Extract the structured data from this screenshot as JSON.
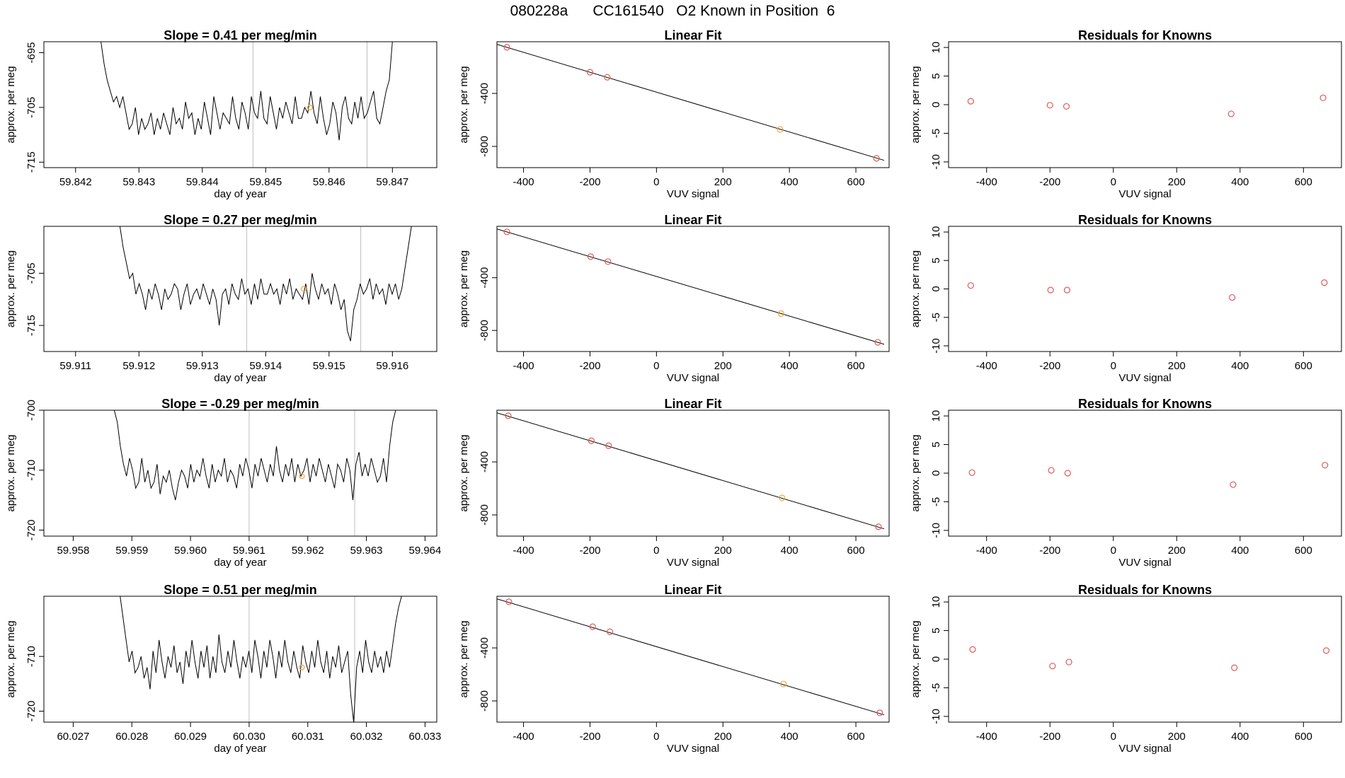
{
  "suptitle": "080228a      CC161540   O2 Known in Position  6",
  "colors": {
    "line": "#000000",
    "gray_line": "#bebebe",
    "red_pt": "#df5a5a",
    "orange_pt": "#f1a63a",
    "axis": "#000000"
  },
  "chart_data": [
    {
      "row": 0,
      "type": "line",
      "title": "Slope =  0.41  per meg/min",
      "xlabel": "day of year",
      "ylabel": "approx. per meg",
      "xlim": [
        59.8415,
        59.8477
      ],
      "ylim": [
        -716,
        -693
      ],
      "xticks": [
        "59.842",
        "59.843",
        "59.844",
        "59.845",
        "59.846",
        "59.847"
      ],
      "yticks": [
        "-695",
        "-705",
        "-715"
      ],
      "vlines": [
        59.8448,
        59.8466
      ],
      "highlight_point": {
        "x": 59.8457,
        "y": -705
      },
      "series_x_start": 59.8424,
      "series_x_end": 59.847,
      "series_y": [
        -693,
        -697,
        -700,
        -702,
        -704,
        -703,
        -705,
        -703,
        -706,
        -709,
        -708,
        -705,
        -710,
        -707,
        -709,
        -708,
        -706,
        -710,
        -707,
        -709,
        -706,
        -708,
        -710,
        -705,
        -708,
        -707,
        -709,
        -704,
        -707,
        -706,
        -710,
        -707,
        -709,
        -704,
        -707,
        -710,
        -703,
        -706,
        -709,
        -706,
        -707,
        -708,
        -703,
        -707,
        -709,
        -704,
        -706,
        -709,
        -703,
        -706,
        -707,
        -702,
        -707,
        -708,
        -703,
        -706,
        -709,
        -705,
        -707,
        -704,
        -706,
        -708,
        -703,
        -707,
        -707,
        -705,
        -706,
        -702,
        -706,
        -708,
        -703,
        -707,
        -710,
        -708,
        -704,
        -706,
        -711,
        -705,
        -703,
        -707,
        -708,
        -704,
        -707,
        -703,
        -707,
        -706,
        -704,
        -702,
        -707,
        -708,
        -705,
        -702,
        -700,
        -693
      ]
    },
    {
      "row": 0,
      "type": "scatter",
      "title": "Linear Fit",
      "xlabel": "VUV signal",
      "ylabel": "approx. per meg",
      "xlim": [
        -480,
        700
      ],
      "ylim": [
        -960,
        -10
      ],
      "xticks": [
        -400,
        -200,
        0,
        200,
        400,
        600
      ],
      "yticks": [
        -400,
        -800
      ],
      "points": [
        {
          "x": -450,
          "y": -52
        },
        {
          "x": -200,
          "y": -240
        },
        {
          "x": -148,
          "y": -278
        },
        {
          "x": 372,
          "y": -672
        },
        {
          "x": 662,
          "y": -890
        }
      ],
      "point_colors": [
        "red",
        "red",
        "red",
        "orange",
        "red"
      ],
      "fit_line": {
        "x": [
          -480,
          685
        ],
        "y": [
          -30,
          -905
        ]
      }
    },
    {
      "row": 0,
      "type": "scatter",
      "title": "Residuals for Knowns",
      "xlabel": "VUV signal",
      "ylabel": "approx. per meg",
      "xlim": [
        -520,
        720
      ],
      "ylim": [
        -11,
        11
      ],
      "xticks": [
        -400,
        -200,
        0,
        200,
        400,
        600
      ],
      "yticks": [
        10,
        5,
        0,
        -5,
        -10
      ],
      "points": [
        {
          "x": -450,
          "y": 0.6
        },
        {
          "x": -200,
          "y": -0.1
        },
        {
          "x": -148,
          "y": -0.3
        },
        {
          "x": 372,
          "y": -1.6
        },
        {
          "x": 662,
          "y": 1.2
        }
      ]
    },
    {
      "row": 1,
      "type": "line",
      "title": "Slope =  0.27  per meg/min",
      "xlabel": "day of year",
      "ylabel": "approx. per meg",
      "xlim": [
        59.9105,
        59.9167
      ],
      "ylim": [
        -720,
        -696
      ],
      "xticks": [
        "59.911",
        "59.912",
        "59.913",
        "59.914",
        "59.915",
        "59.916"
      ],
      "yticks": [
        "-705",
        "-715"
      ],
      "vlines": [
        59.9137,
        59.9155
      ],
      "highlight_point": {
        "x": 59.9146,
        "y": -708
      },
      "series_x_start": 59.9117,
      "series_x_end": 59.9163,
      "series_y": [
        -696,
        -700,
        -703,
        -706,
        -705,
        -709,
        -707,
        -709,
        -712,
        -708,
        -710,
        -707,
        -709,
        -712,
        -708,
        -710,
        -709,
        -707,
        -708,
        -712,
        -709,
        -707,
        -711,
        -709,
        -708,
        -710,
        -707,
        -709,
        -711,
        -708,
        -710,
        -715,
        -709,
        -708,
        -711,
        -707,
        -709,
        -710,
        -706,
        -709,
        -708,
        -711,
        -707,
        -710,
        -706,
        -709,
        -709,
        -707,
        -709,
        -708,
        -711,
        -707,
        -709,
        -706,
        -710,
        -708,
        -709,
        -710,
        -707,
        -711,
        -705,
        -708,
        -710,
        -707,
        -709,
        -708,
        -711,
        -707,
        -709,
        -712,
        -710,
        -716,
        -718,
        -712,
        -710,
        -707,
        -709,
        -708,
        -706,
        -710,
        -707,
        -709,
        -708,
        -711,
        -707,
        -709,
        -707,
        -710,
        -708,
        -704,
        -700,
        -696
      ]
    },
    {
      "row": 1,
      "type": "scatter",
      "title": "Linear Fit",
      "xlabel": "VUV signal",
      "ylabel": "approx. per meg",
      "xlim": [
        -480,
        700
      ],
      "ylim": [
        -960,
        -10
      ],
      "xticks": [
        -400,
        -200,
        0,
        200,
        400,
        600
      ],
      "yticks": [
        -400,
        -800
      ],
      "points": [
        {
          "x": -450,
          "y": -52
        },
        {
          "x": -198,
          "y": -240
        },
        {
          "x": -146,
          "y": -278
        },
        {
          "x": 375,
          "y": -672
        },
        {
          "x": 666,
          "y": -890
        }
      ],
      "point_colors": [
        "red",
        "red",
        "red",
        "orange",
        "red"
      ],
      "fit_line": {
        "x": [
          -480,
          685
        ],
        "y": [
          -30,
          -905
        ]
      }
    },
    {
      "row": 1,
      "type": "scatter",
      "title": "Residuals for Knowns",
      "xlabel": "VUV signal",
      "ylabel": "approx. per meg",
      "xlim": [
        -520,
        720
      ],
      "ylim": [
        -11,
        11
      ],
      "xticks": [
        -400,
        -200,
        0,
        200,
        400,
        600
      ],
      "yticks": [
        10,
        5,
        0,
        -5,
        -10
      ],
      "points": [
        {
          "x": -450,
          "y": 0.6
        },
        {
          "x": -198,
          "y": -0.2
        },
        {
          "x": -146,
          "y": -0.2
        },
        {
          "x": 375,
          "y": -1.5
        },
        {
          "x": 666,
          "y": 1.1
        }
      ]
    },
    {
      "row": 2,
      "type": "line",
      "title": "Slope =  -0.29  per meg/min",
      "xlabel": "day of year",
      "ylabel": "approx. per meg",
      "xlim": [
        59.9575,
        59.9642
      ],
      "ylim": [
        -721,
        -700
      ],
      "xticks": [
        "59.958",
        "59.959",
        "59.960",
        "59.961",
        "59.962",
        "59.963",
        "59.964"
      ],
      "yticks": [
        "-700",
        "-710",
        "-720"
      ],
      "vlines": [
        59.961,
        59.9628
      ],
      "highlight_point": {
        "x": 59.9619,
        "y": -711
      },
      "series_x_start": 59.9587,
      "series_x_end": 59.9635,
      "series_y": [
        -700,
        -702,
        -706,
        -709,
        -711,
        -708,
        -710,
        -713,
        -712,
        -708,
        -712,
        -710,
        -713,
        -712,
        -709,
        -714,
        -711,
        -712,
        -710,
        -713,
        -715,
        -712,
        -710,
        -711,
        -713,
        -709,
        -712,
        -710,
        -711,
        -708,
        -711,
        -713,
        -709,
        -712,
        -710,
        -711,
        -708,
        -712,
        -710,
        -711,
        -713,
        -709,
        -711,
        -708,
        -710,
        -713,
        -709,
        -711,
        -708,
        -710,
        -712,
        -709,
        -711,
        -706,
        -710,
        -712,
        -709,
        -711,
        -708,
        -712,
        -709,
        -711,
        -710,
        -708,
        -712,
        -709,
        -711,
        -708,
        -710,
        -712,
        -709,
        -711,
        -713,
        -709,
        -710,
        -712,
        -708,
        -710,
        -715,
        -709,
        -707,
        -711,
        -709,
        -711,
        -708,
        -710,
        -712,
        -711,
        -708,
        -712,
        -706,
        -702,
        -700
      ]
    },
    {
      "row": 2,
      "type": "scatter",
      "title": "Linear Fit",
      "xlabel": "VUV signal",
      "ylabel": "approx. per meg",
      "xlim": [
        -480,
        700
      ],
      "ylim": [
        -960,
        -10
      ],
      "xticks": [
        -400,
        -200,
        0,
        200,
        400,
        600
      ],
      "yticks": [
        -400,
        -800
      ],
      "points": [
        {
          "x": -446,
          "y": -52
        },
        {
          "x": -196,
          "y": -240
        },
        {
          "x": -144,
          "y": -278
        },
        {
          "x": 378,
          "y": -672
        },
        {
          "x": 668,
          "y": -890
        }
      ],
      "point_colors": [
        "red",
        "red",
        "red",
        "orange",
        "red"
      ],
      "fit_line": {
        "x": [
          -480,
          685
        ],
        "y": [
          -30,
          -905
        ]
      }
    },
    {
      "row": 2,
      "type": "scatter",
      "title": "Residuals for Knowns",
      "xlabel": "VUV signal",
      "ylabel": "approx. per meg",
      "xlim": [
        -520,
        720
      ],
      "ylim": [
        -11,
        11
      ],
      "xticks": [
        -400,
        -200,
        0,
        200,
        400,
        600
      ],
      "yticks": [
        10,
        5,
        0,
        -5,
        -10
      ],
      "points": [
        {
          "x": -446,
          "y": 0.1
        },
        {
          "x": -196,
          "y": 0.5
        },
        {
          "x": -144,
          "y": 0.0
        },
        {
          "x": 378,
          "y": -2.0
        },
        {
          "x": 668,
          "y": 1.4
        }
      ]
    },
    {
      "row": 3,
      "type": "line",
      "title": "Slope =  0.51  per meg/min",
      "xlabel": "day of year",
      "ylabel": "approx. per meg",
      "xlim": [
        60.0265,
        60.0332
      ],
      "ylim": [
        -722,
        -699
      ],
      "xticks": [
        "60.027",
        "60.028",
        "60.029",
        "60.030",
        "60.031",
        "60.032",
        "60.033"
      ],
      "yticks": [
        "-710",
        "-720"
      ],
      "vlines": [
        60.03,
        60.0318
      ],
      "highlight_point": {
        "x": 60.0309,
        "y": -712
      },
      "series_x_start": 60.0278,
      "series_x_end": 60.0326,
      "series_y": [
        -699,
        -703,
        -707,
        -711,
        -709,
        -713,
        -712,
        -710,
        -714,
        -712,
        -716,
        -709,
        -713,
        -707,
        -711,
        -714,
        -710,
        -712,
        -708,
        -713,
        -711,
        -715,
        -709,
        -712,
        -707,
        -711,
        -714,
        -709,
        -712,
        -708,
        -714,
        -710,
        -713,
        -706,
        -711,
        -713,
        -709,
        -712,
        -707,
        -711,
        -714,
        -710,
        -712,
        -709,
        -713,
        -707,
        -710,
        -714,
        -709,
        -712,
        -707,
        -710,
        -714,
        -709,
        -712,
        -707,
        -711,
        -713,
        -709,
        -712,
        -714,
        -708,
        -711,
        -713,
        -709,
        -712,
        -707,
        -711,
        -713,
        -709,
        -714,
        -710,
        -712,
        -708,
        -713,
        -711,
        -709,
        -717,
        -722,
        -712,
        -709,
        -713,
        -707,
        -711,
        -713,
        -709,
        -712,
        -710,
        -713,
        -709,
        -712,
        -708,
        -704,
        -701,
        -699
      ]
    },
    {
      "row": 3,
      "type": "scatter",
      "title": "Linear Fit",
      "xlabel": "VUV signal",
      "ylabel": "approx. per meg",
      "xlim": [
        -480,
        700
      ],
      "ylim": [
        -960,
        -10
      ],
      "xticks": [
        -400,
        -200,
        0,
        200,
        400,
        600
      ],
      "yticks": [
        -400,
        -800
      ],
      "points": [
        {
          "x": -444,
          "y": -52
        },
        {
          "x": -192,
          "y": -240
        },
        {
          "x": -140,
          "y": -278
        },
        {
          "x": 382,
          "y": -672
        },
        {
          "x": 672,
          "y": -890
        }
      ],
      "point_colors": [
        "red",
        "red",
        "red",
        "orange",
        "red"
      ],
      "fit_line": {
        "x": [
          -480,
          685
        ],
        "y": [
          -30,
          -905
        ]
      }
    },
    {
      "row": 3,
      "type": "scatter",
      "title": "Residuals for Knowns",
      "xlabel": "VUV signal",
      "ylabel": "approx. per meg",
      "xlim": [
        -520,
        720
      ],
      "ylim": [
        -11,
        11
      ],
      "xticks": [
        -400,
        -200,
        0,
        200,
        400,
        600
      ],
      "yticks": [
        10,
        5,
        0,
        -5,
        -10
      ],
      "points": [
        {
          "x": -444,
          "y": 1.7
        },
        {
          "x": -192,
          "y": -1.2
        },
        {
          "x": -140,
          "y": -0.5
        },
        {
          "x": 382,
          "y": -1.5
        },
        {
          "x": 672,
          "y": 1.5
        }
      ]
    }
  ]
}
